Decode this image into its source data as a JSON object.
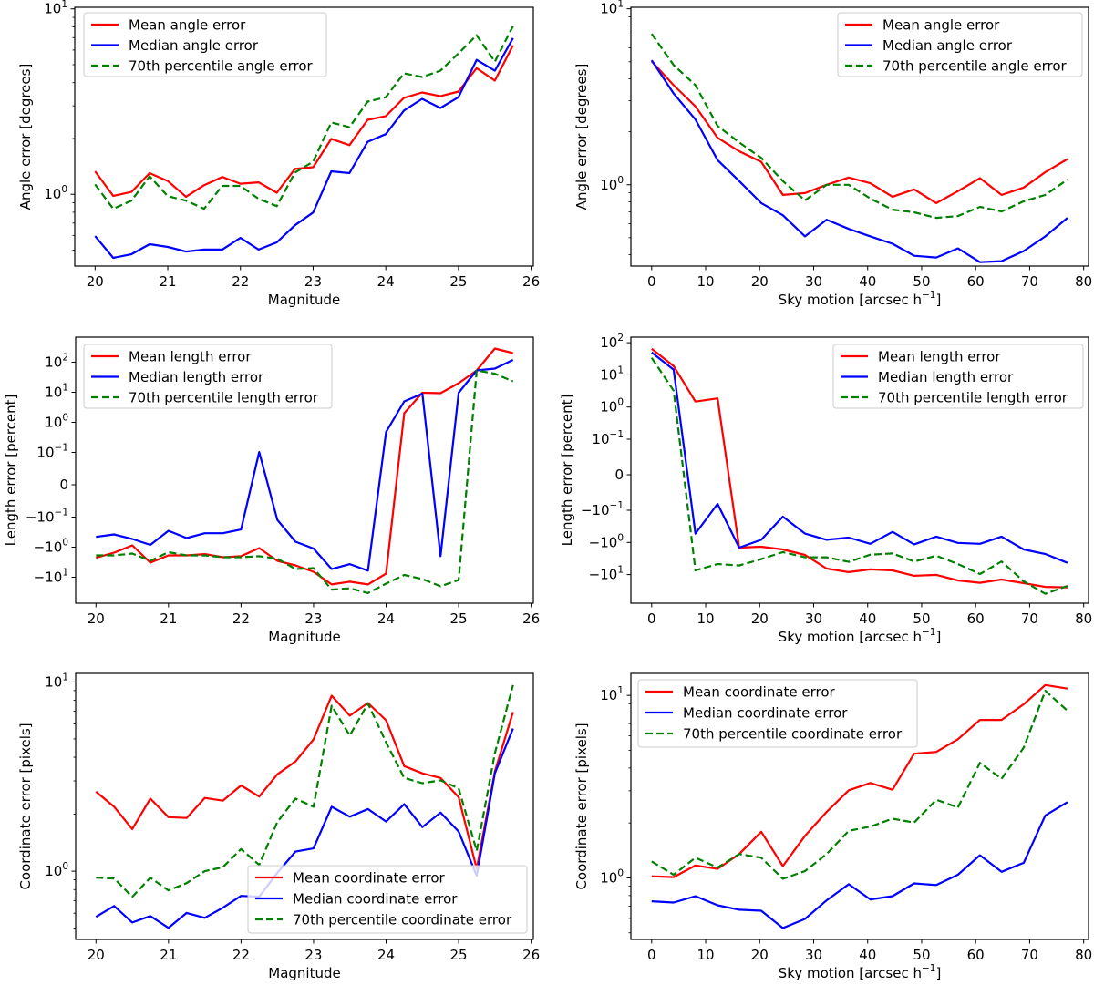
{
  "colors": {
    "mean": "#ff0000",
    "median": "#0000ff",
    "p70": "#008000",
    "frame": "#000000",
    "legend_border": "#cccccc"
  },
  "chart_data": [
    {
      "id": "angle-vs-magnitude",
      "type": "line",
      "xlabel": "Magnitude",
      "ylabel": "Angle error [degrees]",
      "yscale": "log",
      "xlim": [
        19.72,
        26.03
      ],
      "ylim": [
        0.41,
        10.2
      ],
      "xticks": [
        20,
        21,
        22,
        23,
        24,
        25,
        26
      ],
      "xtick_labels": [
        "20",
        "21",
        "22",
        "23",
        "24",
        "25",
        "26"
      ],
      "yticks": [
        {
          "value": 1,
          "base": "10",
          "exp": "0"
        },
        {
          "value": 10,
          "base": "10",
          "exp": "1"
        }
      ],
      "legend_position": "upper-left",
      "x": [
        20,
        20.25,
        20.5,
        20.75,
        21,
        21.25,
        21.5,
        21.75,
        22,
        22.25,
        22.5,
        22.75,
        23,
        23.25,
        23.5,
        23.75,
        24,
        24.25,
        24.5,
        24.75,
        25,
        25.25,
        25.5,
        25.75
      ],
      "series": [
        {
          "key": "mean",
          "name": "Mean angle error",
          "style": "solid",
          "values": [
            1.33,
            0.98,
            1.03,
            1.3,
            1.18,
            0.97,
            1.12,
            1.24,
            1.14,
            1.16,
            1.02,
            1.37,
            1.4,
            1.99,
            1.84,
            2.52,
            2.64,
            3.31,
            3.54,
            3.38,
            3.58,
            4.79,
            4.1,
            6.36
          ]
        },
        {
          "key": "median",
          "name": "Median angle error",
          "style": "solid",
          "values": [
            0.595,
            0.454,
            0.475,
            0.538,
            0.52,
            0.491,
            0.503,
            0.503,
            0.582,
            0.503,
            0.55,
            0.681,
            0.798,
            1.33,
            1.3,
            1.92,
            2.11,
            2.83,
            3.27,
            2.92,
            3.34,
            5.31,
            4.64,
            6.96
          ]
        },
        {
          "key": "p70",
          "name": "70th percentile angle error",
          "style": "dashed",
          "values": [
            1.13,
            0.835,
            0.924,
            1.25,
            0.978,
            0.924,
            0.835,
            1.11,
            1.11,
            0.945,
            0.863,
            1.31,
            1.5,
            2.44,
            2.3,
            3.16,
            3.34,
            4.49,
            4.29,
            4.64,
            5.75,
            7.21,
            5.19,
            8.08
          ]
        }
      ]
    },
    {
      "id": "angle-vs-skymotion",
      "type": "line",
      "xlabel": "Sky motion [arcsec h",
      "xlabel_sup": "−1",
      "xlabel_end": "]",
      "ylabel": "Angle error [degrees]",
      "yscale": "log",
      "xlim": [
        -3.85,
        80.9
      ],
      "ylim": [
        0.345,
        10.2
      ],
      "xticks": [
        0,
        10,
        20,
        30,
        40,
        50,
        60,
        70,
        80
      ],
      "xtick_labels": [
        "0",
        "10",
        "20",
        "30",
        "40",
        "50",
        "60",
        "70",
        "80"
      ],
      "yticks": [
        {
          "value": 1,
          "base": "10",
          "exp": "0"
        },
        {
          "value": 10,
          "base": "10",
          "exp": "1"
        }
      ],
      "legend_position": "upper-right",
      "x": [
        0,
        4.06,
        8.1,
        12.2,
        16.2,
        20.3,
        24.3,
        28.4,
        32.4,
        36.5,
        40.5,
        44.6,
        48.6,
        52.7,
        56.7,
        60.8,
        64.8,
        68.9,
        72.9,
        77.0
      ],
      "series": [
        {
          "key": "mean",
          "name": "Mean angle error",
          "style": "solid",
          "values": [
            5.03,
            3.68,
            2.79,
            1.85,
            1.55,
            1.35,
            0.876,
            0.897,
            1.0,
            1.1,
            1.02,
            0.855,
            0.942,
            0.786,
            0.919,
            1.09,
            0.876,
            0.964,
            1.18,
            1.4
          ]
        },
        {
          "key": "median",
          "name": "Median angle error",
          "style": "solid",
          "values": [
            5.1,
            3.3,
            2.35,
            1.38,
            1.05,
            0.786,
            0.671,
            0.509,
            0.633,
            0.561,
            0.509,
            0.462,
            0.395,
            0.386,
            0.435,
            0.363,
            0.368,
            0.42,
            0.509,
            0.648
          ]
        },
        {
          "key": "p70",
          "name": "70th percentile angle error",
          "style": "dashed",
          "values": [
            7.21,
            4.79,
            3.68,
            2.16,
            1.74,
            1.42,
            1.05,
            0.815,
            1.0,
            1.0,
            0.835,
            0.722,
            0.697,
            0.648,
            0.664,
            0.749,
            0.705,
            0.805,
            0.876,
            1.07
          ]
        }
      ]
    },
    {
      "id": "length-vs-magnitude",
      "type": "line",
      "xlabel": "Magnitude",
      "ylabel": "Length error [percent]",
      "yscale": "symlog",
      "linthresh": 0.1,
      "xlim": [
        19.72,
        26.03
      ],
      "ylim": [
        -60,
        600
      ],
      "xticks": [
        20,
        21,
        22,
        23,
        24,
        25,
        26
      ],
      "xtick_labels": [
        "20",
        "21",
        "22",
        "23",
        "24",
        "25",
        "26"
      ],
      "yticks": [
        {
          "value": 100,
          "base": "10",
          "exp": "2"
        },
        {
          "value": 10,
          "base": "10",
          "exp": "1"
        },
        {
          "value": 1,
          "base": "10",
          "exp": "0"
        },
        {
          "value": 0.1,
          "base": "10",
          "exp": "−1"
        },
        {
          "value": 0,
          "base": "0",
          "exp": ""
        },
        {
          "value": -0.1,
          "base": "−10",
          "exp": "−1"
        },
        {
          "value": -1,
          "base": "−10",
          "exp": "0"
        },
        {
          "value": -10,
          "base": "−10",
          "exp": "1"
        }
      ],
      "legend_position": "upper-left",
      "x": [
        20,
        20.25,
        20.5,
        20.75,
        21,
        21.25,
        21.5,
        21.75,
        22,
        22.25,
        22.5,
        22.75,
        23,
        23.25,
        23.5,
        23.75,
        24,
        24.25,
        24.5,
        24.75,
        25,
        25.25,
        25.5,
        25.75
      ],
      "series": [
        {
          "key": "mean",
          "name": "Mean length error",
          "style": "solid",
          "values": [
            -2.24,
            -1.52,
            -0.87,
            -3.27,
            -1.87,
            -1.87,
            -1.7,
            -2.16,
            -2.0,
            -1.07,
            -2.84,
            -4.03,
            -6.58,
            -17.4,
            -14.1,
            -17.4,
            -7.57,
            2.01,
            9.66,
            9.32,
            20.1,
            53.5,
            284,
            201
          ]
        },
        {
          "key": "median",
          "name": "Median length error",
          "style": "solid",
          "values": [
            -0.454,
            -0.377,
            -0.533,
            -0.839,
            -0.284,
            -0.498,
            -0.344,
            -0.344,
            -0.258,
            0.103,
            -0.123,
            -0.657,
            -1.11,
            -5.34,
            -3.66,
            -6.03,
            0.477,
            4.98,
            9.0,
            -2.0,
            9.66,
            53.5,
            61.4,
            118.9
          ]
        },
        {
          "key": "p70",
          "name": "70th percentile length error",
          "style": "dashed",
          "values": [
            -1.87,
            -1.87,
            -1.63,
            -2.84,
            -1.47,
            -1.87,
            -1.87,
            -2.16,
            -2.16,
            -2.0,
            -2.41,
            -5.34,
            -4.97,
            -25.9,
            -23.2,
            -33.6,
            -16.3,
            -8.4,
            -11.5,
            -20.0,
            -12.3,
            53.5,
            41.5,
            23.1
          ]
        }
      ]
    },
    {
      "id": "length-vs-skymotion",
      "type": "line",
      "xlabel": "Sky motion [arcsec h",
      "xlabel_sup": "−1",
      "xlabel_end": "]",
      "ylabel": "Length error [percent]",
      "yscale": "symlog",
      "linthresh": 0.1,
      "xlim": [
        -3.85,
        80.9
      ],
      "ylim": [
        -60,
        140
      ],
      "xticks": [
        0,
        10,
        20,
        30,
        40,
        50,
        60,
        70,
        80
      ],
      "xtick_labels": [
        "0",
        "10",
        "20",
        "30",
        "40",
        "50",
        "60",
        "70",
        "80"
      ],
      "yticks": [
        {
          "value": 100,
          "base": "10",
          "exp": "2"
        },
        {
          "value": 10,
          "base": "10",
          "exp": "1"
        },
        {
          "value": 1,
          "base": "10",
          "exp": "0"
        },
        {
          "value": 0.1,
          "base": "10",
          "exp": "−1"
        },
        {
          "value": 0,
          "base": "0",
          "exp": ""
        },
        {
          "value": -0.1,
          "base": "−10",
          "exp": "−1"
        },
        {
          "value": -1,
          "base": "−10",
          "exp": "0"
        },
        {
          "value": -10,
          "base": "−10",
          "exp": "1"
        }
      ],
      "legend_position": "upper-right",
      "x": [
        0,
        4.06,
        8.1,
        12.2,
        16.2,
        20.3,
        24.3,
        28.4,
        32.4,
        36.5,
        40.5,
        44.6,
        48.6,
        52.7,
        56.7,
        60.8,
        64.8,
        68.9,
        72.9,
        77.0
      ],
      "series": [
        {
          "key": "mean",
          "name": "Mean length error",
          "style": "solid",
          "values": [
            65,
            18.8,
            1.48,
            1.86,
            -1.45,
            -1.36,
            -1.65,
            -2.44,
            -6.5,
            -8.4,
            -6.9,
            -7.4,
            -10.9,
            -10.2,
            -15.2,
            -18.0,
            -14.2,
            -18.5,
            -24.1,
            -25.0
          ]
        },
        {
          "key": "median",
          "name": "Median length error",
          "style": "solid",
          "values": [
            50,
            14.5,
            -0.53,
            -0.082,
            -1.45,
            -0.83,
            -0.158,
            -0.53,
            -0.83,
            -0.71,
            -1.1,
            -0.47,
            -1.15,
            -0.66,
            -1.03,
            -1.1,
            -0.66,
            -1.65,
            -2.29,
            -4.3
          ]
        },
        {
          "key": "p70",
          "name": "70th percentile length error",
          "style": "dashed",
          "values": [
            33.8,
            3.24,
            -7.4,
            -4.7,
            -5.2,
            -3.3,
            -2.0,
            -2.9,
            -2.9,
            -4.0,
            -2.4,
            -2.2,
            -3.9,
            -2.6,
            -4.7,
            -9.6,
            -3.9,
            -16.2,
            -39.5,
            -22.4
          ]
        }
      ]
    },
    {
      "id": "coordinate-vs-magnitude",
      "type": "line",
      "xlabel": "Magnitude",
      "ylabel": "Coordinate error [pixels]",
      "yscale": "log",
      "xlim": [
        19.72,
        26.03
      ],
      "ylim": [
        0.436,
        11.1
      ],
      "xticks": [
        20,
        21,
        22,
        23,
        24,
        25,
        26
      ],
      "xtick_labels": [
        "20",
        "21",
        "22",
        "23",
        "24",
        "25",
        "26"
      ],
      "yticks": [
        {
          "value": 1,
          "base": "10",
          "exp": "0"
        },
        {
          "value": 10,
          "base": "10",
          "exp": "1"
        }
      ],
      "legend_position": "lower-right",
      "x": [
        20,
        20.25,
        20.5,
        20.75,
        21,
        21.25,
        21.5,
        21.75,
        22,
        22.25,
        22.5,
        22.75,
        23,
        23.25,
        23.5,
        23.75,
        24,
        24.25,
        24.5,
        24.75,
        25,
        25.25,
        25.5,
        25.75
      ],
      "series": [
        {
          "key": "mean",
          "name": "Mean coordinate error",
          "style": "solid",
          "values": [
            2.63,
            2.19,
            1.67,
            2.42,
            1.93,
            1.91,
            2.44,
            2.36,
            2.84,
            2.48,
            3.25,
            3.8,
            4.97,
            8.46,
            6.64,
            7.74,
            6.27,
            3.59,
            3.29,
            3.11,
            2.46,
            1.03,
            3.36,
            6.93
          ]
        },
        {
          "key": "median",
          "name": "Median coordinate error",
          "style": "solid",
          "values": [
            0.574,
            0.655,
            0.536,
            0.58,
            0.502,
            0.602,
            0.567,
            0.641,
            0.741,
            0.733,
            0.98,
            1.27,
            1.32,
            2.19,
            1.94,
            2.13,
            1.83,
            2.26,
            1.71,
            2.04,
            1.62,
            0.946,
            3.29,
            5.67
          ]
        },
        {
          "key": "p70",
          "name": "70th percentile coordinate error",
          "style": "dashed",
          "values": [
            0.925,
            0.915,
            0.732,
            0.925,
            0.792,
            0.865,
            1.0,
            1.05,
            1.31,
            1.08,
            1.82,
            2.42,
            2.19,
            7.49,
            5.21,
            7.7,
            4.79,
            3.11,
            2.92,
            3.02,
            2.74,
            1.28,
            4.2,
            9.62
          ]
        }
      ]
    },
    {
      "id": "coordinate-vs-skymotion",
      "type": "line",
      "xlabel": "Sky motion [arcsec h",
      "xlabel_sup": "−1",
      "xlabel_end": "]",
      "ylabel": "Coordinate error [pixels]",
      "yscale": "log",
      "xlim": [
        -3.85,
        80.9
      ],
      "ylim": [
        0.46,
        13.2
      ],
      "xticks": [
        0,
        10,
        20,
        30,
        40,
        50,
        60,
        70,
        80
      ],
      "xtick_labels": [
        "0",
        "10",
        "20",
        "30",
        "40",
        "50",
        "60",
        "70",
        "80"
      ],
      "yticks": [
        {
          "value": 1,
          "base": "10",
          "exp": "0"
        },
        {
          "value": 10,
          "base": "10",
          "exp": "1"
        }
      ],
      "legend_position": "upper-left",
      "x": [
        0,
        4.06,
        8.1,
        12.2,
        16.2,
        20.3,
        24.3,
        28.4,
        32.4,
        36.5,
        40.5,
        44.6,
        48.6,
        52.7,
        56.7,
        60.8,
        64.8,
        68.9,
        72.9,
        77.0
      ],
      "series": [
        {
          "key": "mean",
          "name": "Mean coordinate error",
          "style": "solid",
          "values": [
            1.02,
            1.01,
            1.17,
            1.12,
            1.35,
            1.79,
            1.16,
            1.7,
            2.3,
            3.02,
            3.31,
            3.04,
            4.79,
            4.9,
            5.75,
            7.34,
            7.34,
            8.94,
            11.4,
            10.9
          ]
        },
        {
          "key": "median",
          "name": "Median coordinate error",
          "style": "solid",
          "values": [
            0.745,
            0.733,
            0.794,
            0.708,
            0.669,
            0.661,
            0.531,
            0.596,
            0.753,
            0.923,
            0.762,
            0.794,
            0.933,
            0.914,
            1.04,
            1.33,
            1.08,
            1.21,
            2.2,
            2.6
          ]
        },
        {
          "key": "p70",
          "name": "70th percentile coordinate error",
          "style": "dashed",
          "values": [
            1.23,
            1.04,
            1.29,
            1.14,
            1.35,
            1.29,
            0.989,
            1.09,
            1.35,
            1.81,
            1.91,
            2.11,
            2.01,
            2.68,
            2.43,
            4.27,
            3.49,
            5.17,
            10.6,
            8.24
          ]
        }
      ]
    }
  ]
}
